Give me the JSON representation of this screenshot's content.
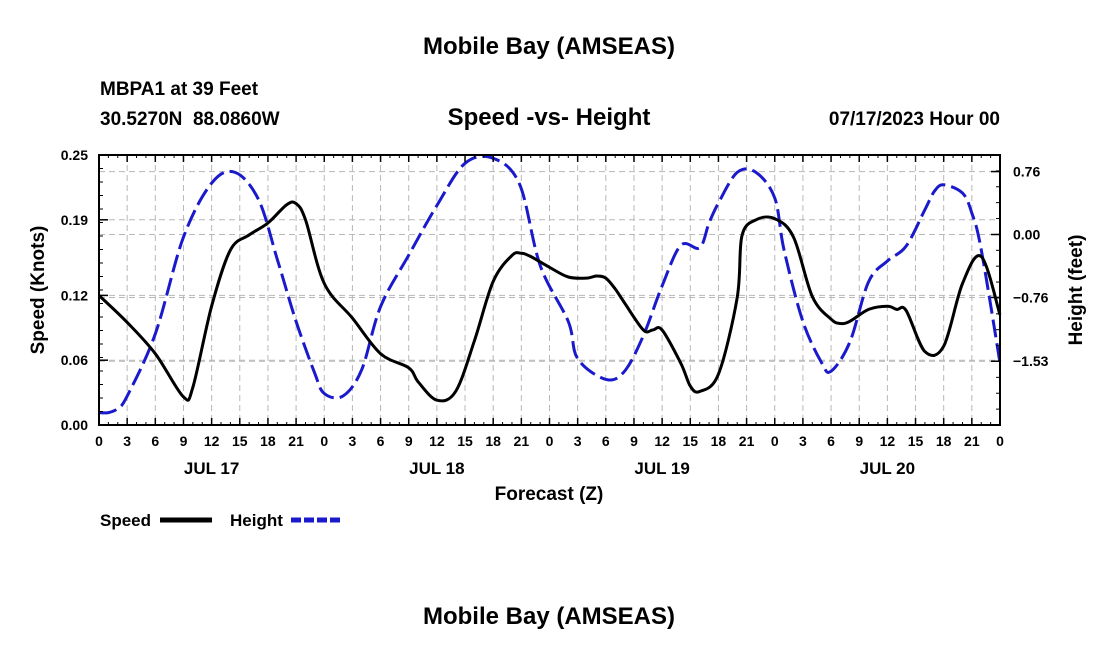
{
  "page": {
    "title": "Mobile Bay (AMSEAS)",
    "footer_title": "Mobile Bay (AMSEAS)"
  },
  "chart_data": {
    "type": "line",
    "title": "Speed -vs- Height",
    "station_line": "MBPA1 at 39 Feet",
    "coords_line": "30.5270N  88.0860W",
    "run_label": "07/17/2023 Hour 00",
    "xlabel": "Forecast (Z)",
    "ylabel": "Speed (Knots)",
    "y2label": "Height (feet)",
    "x_range_hours": [
      0,
      96
    ],
    "ylim": [
      0,
      0.25
    ],
    "y2lim": [
      -2.3,
      0.96
    ],
    "y_ticks": [
      0.0,
      0.06,
      0.12,
      0.19,
      0.25
    ],
    "y_tick_labels": [
      "0.00",
      "0.06",
      "0.12",
      "0.19",
      "0.25"
    ],
    "y2_ticks": [
      -1.53,
      -0.76,
      0.0,
      0.76
    ],
    "y2_tick_labels": [
      "−1.53",
      "−0.76",
      "0.00",
      "0.76"
    ],
    "x_tick_hours": [
      0,
      3,
      6,
      9,
      12,
      15,
      18,
      21,
      24,
      27,
      30,
      33,
      36,
      39,
      42,
      45,
      48,
      51,
      54,
      57,
      60,
      63,
      66,
      69,
      72,
      75,
      78,
      81,
      84,
      87,
      90,
      93,
      96
    ],
    "x_tick_labels": [
      "0",
      "3",
      "6",
      "9",
      "12",
      "15",
      "18",
      "21",
      "0",
      "3",
      "6",
      "9",
      "12",
      "15",
      "18",
      "21",
      "0",
      "3",
      "6",
      "9",
      "12",
      "15",
      "18",
      "21",
      "0",
      "3",
      "6",
      "9",
      "12",
      "15",
      "18",
      "21",
      "0"
    ],
    "day_labels": [
      {
        "hour": 12,
        "label": "JUL 17"
      },
      {
        "hour": 36,
        "label": "JUL 18"
      },
      {
        "hour": 60,
        "label": "JUL 19"
      },
      {
        "hour": 84,
        "label": "JUL 20"
      }
    ],
    "grid": true,
    "legend_position": "bottom-left",
    "series": [
      {
        "name": "Speed",
        "axis": "left",
        "color": "#000000",
        "style": "solid",
        "x": [
          0,
          3,
          6,
          9,
          10,
          12,
          14,
          16,
          18,
          20,
          21,
          22,
          24,
          27,
          30,
          33,
          34,
          36,
          38,
          40,
          42,
          44,
          45,
          46,
          48,
          50,
          52,
          53,
          54,
          55,
          56,
          58,
          59,
          60,
          62,
          63,
          64,
          66,
          68,
          68.5,
          70,
          72,
          74,
          76,
          78,
          79,
          80,
          82,
          84,
          85,
          86,
          88,
          90,
          92,
          94,
          96
        ],
        "values": [
          0.12,
          0.095,
          0.066,
          0.026,
          0.035,
          0.11,
          0.162,
          0.176,
          0.187,
          0.204,
          0.205,
          0.19,
          0.131,
          0.099,
          0.066,
          0.053,
          0.04,
          0.023,
          0.031,
          0.078,
          0.133,
          0.157,
          0.159,
          0.156,
          0.146,
          0.137,
          0.136,
          0.138,
          0.136,
          0.126,
          0.113,
          0.088,
          0.088,
          0.088,
          0.057,
          0.036,
          0.031,
          0.047,
          0.118,
          0.175,
          0.19,
          0.191,
          0.174,
          0.119,
          0.098,
          0.094,
          0.096,
          0.107,
          0.11,
          0.107,
          0.106,
          0.068,
          0.073,
          0.131,
          0.156,
          0.102
        ]
      },
      {
        "name": "Height",
        "axis": "right",
        "color": "#1a1acc",
        "style": "dashed",
        "x": [
          0,
          1,
          2,
          3,
          6,
          9,
          12,
          14.5,
          17,
          19,
          21,
          23,
          24,
          26,
          28,
          30,
          33,
          36,
          39,
          42,
          44.8,
          47,
          50,
          51,
          54,
          56,
          58,
          60,
          62,
          64,
          65,
          66,
          68,
          70,
          72,
          73,
          75,
          77,
          78,
          80,
          82,
          84,
          86,
          88,
          89,
          90,
          92,
          93,
          94,
          96
        ],
        "values": [
          -2.15,
          -2.15,
          -2.1,
          -1.95,
          -1.2,
          -0.03,
          0.62,
          0.75,
          0.42,
          -0.3,
          -1.05,
          -1.68,
          -1.92,
          -1.95,
          -1.63,
          -0.87,
          -0.25,
          0.35,
          0.86,
          0.92,
          0.61,
          -0.37,
          -1.05,
          -1.5,
          -1.75,
          -1.65,
          -1.22,
          -0.62,
          -0.13,
          -0.16,
          0.14,
          0.38,
          0.75,
          0.75,
          0.44,
          -0.19,
          -1.05,
          -1.55,
          -1.65,
          -1.3,
          -0.57,
          -0.32,
          -0.14,
          0.3,
          0.52,
          0.6,
          0.5,
          0.26,
          -0.18,
          -1.55
        ]
      }
    ]
  }
}
